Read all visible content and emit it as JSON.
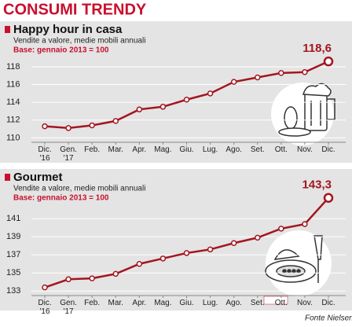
{
  "title": "CONSUMI TRENDY",
  "source": "Fonte Nielsen",
  "chart_data": [
    {
      "type": "line",
      "title": "Happy hour in casa",
      "subtitle": "Vendite a valore, medie mobili annuali",
      "note": "Base: gennaio 2013 = 100",
      "categories": [
        "Dic.\n'16",
        "Gen.\n'17",
        "Feb.",
        "Mar.",
        "Apr.",
        "Mag.",
        "Giu.",
        "Lug.",
        "Ago.",
        "Set.",
        "Ott.",
        "Nov.",
        "Dic."
      ],
      "values": [
        111.3,
        111.1,
        111.4,
        111.9,
        113.2,
        113.5,
        114.3,
        115.0,
        116.3,
        116.8,
        117.3,
        117.4,
        118.6
      ],
      "value_labels": [
        null,
        null,
        null,
        null,
        null,
        null,
        null,
        null,
        null,
        null,
        null,
        null,
        "118,6"
      ],
      "color": "#a3161f",
      "ylim": [
        109.5,
        119.5
      ],
      "yticks": [
        110,
        112,
        114,
        116,
        118
      ],
      "grid": true
    },
    {
      "type": "line",
      "title": "Gourmet",
      "subtitle": "Vendite a valore, medie mobili annuali",
      "note": "Base: gennaio 2013 = 100",
      "categories": [
        "Dic.\n'16",
        "Gen.\n'17",
        "Feb.",
        "Mar.",
        "Apr.",
        "Mag.",
        "Giu.",
        "Lug.",
        "Ago.",
        "Set.",
        "Ott.",
        "Nov.",
        "Dic."
      ],
      "values": [
        133.4,
        134.3,
        134.4,
        134.9,
        136.0,
        136.6,
        137.2,
        137.6,
        138.3,
        138.9,
        139.9,
        140.4,
        143.3
      ],
      "value_labels": [
        null,
        null,
        null,
        null,
        null,
        null,
        null,
        null,
        null,
        null,
        null,
        null,
        "143,3"
      ],
      "color": "#a3161f",
      "ylim": [
        132.5,
        143.8
      ],
      "yticks": [
        133,
        135,
        137,
        139,
        141
      ],
      "grid": true
    }
  ]
}
